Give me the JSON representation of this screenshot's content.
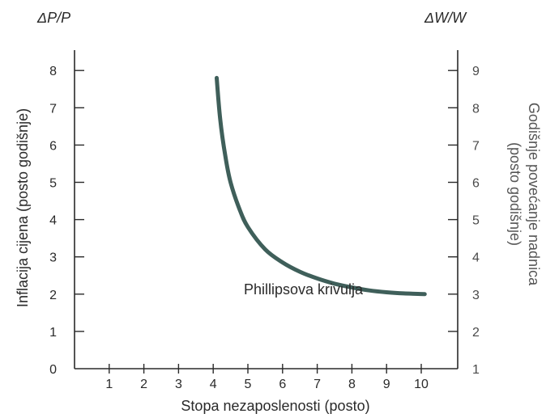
{
  "chart_data": {
    "type": "line",
    "title": "",
    "xlabel": "Stopa nezaposlenosti (posto)",
    "ylabel": "Inflacija cijena (posto godišnje)",
    "ylabel_right_line1": "Godišnje povećanje nadnica",
    "ylabel_right_line2": "(posto godišnje)",
    "ylabel_top": "ΔP/P",
    "ylabel_right_top": "ΔW/W",
    "xlim": [
      0,
      10.5
    ],
    "ylim": [
      0,
      8.8
    ],
    "y2lim": [
      1,
      9.8
    ],
    "x_ticks": [
      1,
      2,
      3,
      4,
      5,
      6,
      7,
      8,
      9,
      10
    ],
    "y_ticks": [
      0,
      1,
      2,
      3,
      4,
      5,
      6,
      7,
      8
    ],
    "y2_ticks": [
      1,
      2,
      3,
      4,
      5,
      6,
      7,
      8,
      9
    ],
    "grid": false,
    "series": [
      {
        "x": [
          4.1,
          4.2,
          4.35,
          4.5,
          4.75,
          5.0,
          5.5,
          6.0,
          6.5,
          7.0,
          7.5,
          8.0,
          8.5,
          9.0,
          9.5,
          10.1
        ],
        "values": [
          7.8,
          6.7,
          5.7,
          5.0,
          4.3,
          3.8,
          3.2,
          2.85,
          2.6,
          2.42,
          2.28,
          2.18,
          2.1,
          2.05,
          2.02,
          2.0
        ]
      }
    ],
    "annotations": [
      {
        "text": "Phillipsova krivulja",
        "x": 6.6,
        "y": 2.0
      }
    ],
    "colors": {
      "line": "#3f5f5a",
      "axis": "#2a2a2a"
    }
  }
}
